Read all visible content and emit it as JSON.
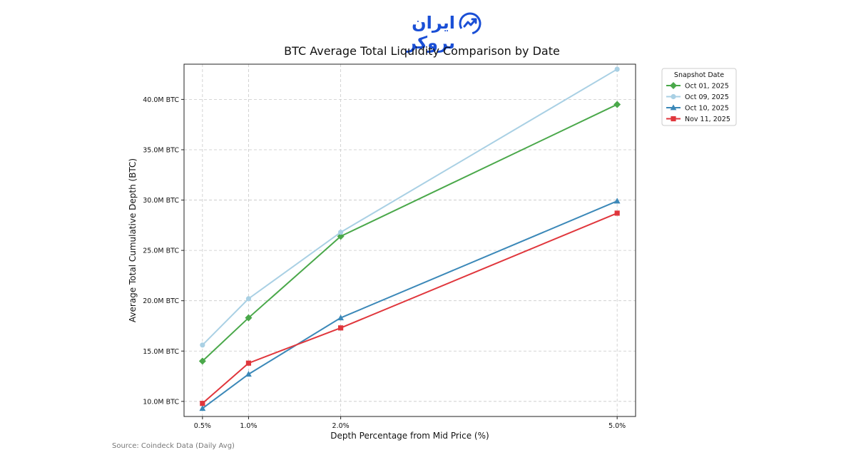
{
  "logo": {
    "text": "ایران بروکر",
    "color": "#1a4fd6"
  },
  "source_note": "Source: Coindeck Data (Daily Avg)",
  "chart_data": {
    "type": "line",
    "title": "BTC Average Total Liquidity Comparison by Date",
    "xlabel": "Depth Percentage from Mid Price (%)",
    "ylabel": "Average Total Cumulative Depth (BTC)",
    "x": [
      0.5,
      1.0,
      2.0,
      5.0
    ],
    "x_tick_labels": [
      "0.5%",
      "1.0%",
      "2.0%",
      "5.0%"
    ],
    "xlim": [
      0.3,
      5.2
    ],
    "ylim": [
      8.5,
      43.5
    ],
    "y_ticks": [
      10,
      15,
      20,
      25,
      30,
      35,
      40
    ],
    "y_tick_labels": [
      "10.0M BTC",
      "15.0M BTC",
      "20.0M BTC",
      "25.0M BTC",
      "30.0M BTC",
      "35.0M BTC",
      "40.0M BTC"
    ],
    "grid": true,
    "legend_title": "Snapshot Date",
    "legend_position": "outside top-right",
    "series": [
      {
        "name": "Oct 01, 2025",
        "color": "#4aa84a",
        "marker": "diamond",
        "values": [
          14.0,
          18.3,
          26.4,
          39.5
        ]
      },
      {
        "name": "Oct 09, 2025",
        "color": "#a9d0e4",
        "marker": "circle",
        "values": [
          15.6,
          20.2,
          26.8,
          43.0
        ]
      },
      {
        "name": "Oct 10, 2025",
        "color": "#3b88b8",
        "marker": "triangle",
        "values": [
          9.3,
          12.7,
          18.3,
          29.9
        ]
      },
      {
        "name": "Nov 11, 2025",
        "color": "#e0363c",
        "marker": "square",
        "values": [
          9.8,
          13.8,
          17.3,
          28.7
        ]
      }
    ]
  }
}
